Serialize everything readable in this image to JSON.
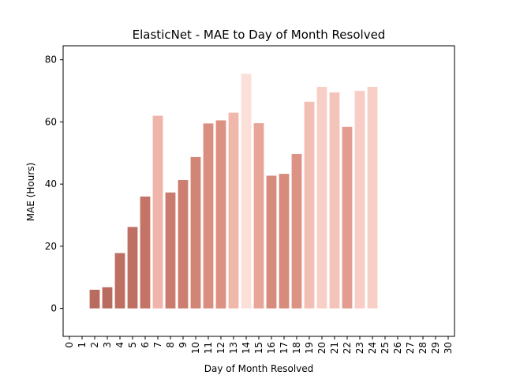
{
  "chart_data": {
    "type": "bar",
    "title": "ElasticNet - MAE to Day of Month Resolved",
    "xlabel": "Day of Month Resolved",
    "ylabel": "MAE (Hours)",
    "x_ticks": [
      "0",
      "1",
      "2",
      "3",
      "4",
      "5",
      "6",
      "7",
      "8",
      "9",
      "10",
      "11",
      "12",
      "13",
      "14",
      "15",
      "16",
      "17",
      "18",
      "19",
      "20",
      "21",
      "22",
      "23",
      "24",
      "25",
      "26",
      "27",
      "28",
      "29",
      "30"
    ],
    "y_ticks": [
      0,
      20,
      40,
      60,
      80
    ],
    "xlim": [
      -0.5,
      30.5
    ],
    "ylim": [
      -9,
      84.5
    ],
    "grid": false,
    "bars": [
      {
        "x": 2,
        "value": 6.0,
        "color": "#b86b5f"
      },
      {
        "x": 3,
        "value": 6.8,
        "color": "#b86b5f"
      },
      {
        "x": 4,
        "value": 17.8,
        "color": "#bd6f62"
      },
      {
        "x": 5,
        "value": 26.2,
        "color": "#bf7063"
      },
      {
        "x": 6,
        "value": 36.0,
        "color": "#c47466"
      },
      {
        "x": 7,
        "value": 62.0,
        "color": "#f0b5aa"
      },
      {
        "x": 8,
        "value": 37.3,
        "color": "#cb7b6d"
      },
      {
        "x": 9,
        "value": 41.3,
        "color": "#cd7e70"
      },
      {
        "x": 10,
        "value": 48.7,
        "color": "#d28476"
      },
      {
        "x": 11,
        "value": 59.5,
        "color": "#d98e80"
      },
      {
        "x": 12,
        "value": 60.5,
        "color": "#dc9283"
      },
      {
        "x": 13,
        "value": 63.0,
        "color": "#f0b7ab"
      },
      {
        "x": 14,
        "value": 75.5,
        "color": "#fbe0da"
      },
      {
        "x": 15,
        "value": 59.6,
        "color": "#e8a699"
      },
      {
        "x": 16,
        "value": 42.7,
        "color": "#d68b7d"
      },
      {
        "x": 17,
        "value": 43.3,
        "color": "#d68b7d"
      },
      {
        "x": 18,
        "value": 49.7,
        "color": "#dc9385"
      },
      {
        "x": 19,
        "value": 66.5,
        "color": "#f3bfb5"
      },
      {
        "x": 20,
        "value": 71.3,
        "color": "#f8cfc7"
      },
      {
        "x": 21,
        "value": 69.5,
        "color": "#f4c4ba"
      },
      {
        "x": 22,
        "value": 58.4,
        "color": "#e39d90"
      },
      {
        "x": 23,
        "value": 70.0,
        "color": "#f7cdc5"
      },
      {
        "x": 24,
        "value": 71.3,
        "color": "#f8cfc7"
      }
    ]
  }
}
